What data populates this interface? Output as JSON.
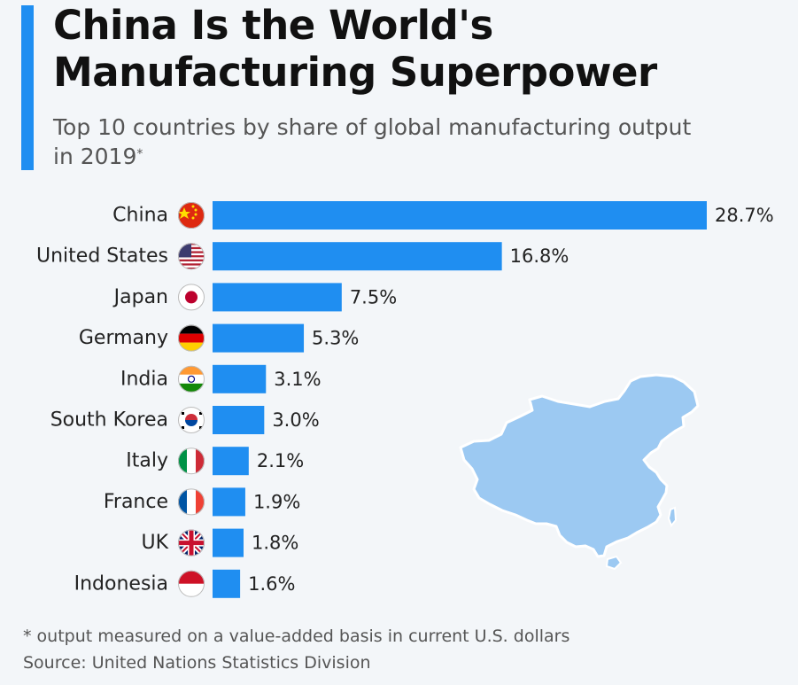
{
  "header": {
    "title_line1": "China Is the World's",
    "title_line2": "Manufacturing Superpower",
    "subtitle": "Top 10 countries by share of global manufacturing output in 2019",
    "subtitle_mark": "*"
  },
  "footer": {
    "footnote": "* output measured on a value-added basis in current U.S. dollars",
    "source": "Source: United Nations Statistics Division"
  },
  "colors": {
    "accent": "#1f8ef1",
    "bar": "#1f8ef1",
    "map_fill": "#9cc9f2",
    "map_stroke": "#ffffff"
  },
  "chart_data": {
    "type": "bar",
    "orientation": "horizontal",
    "categories": [
      "China",
      "United States",
      "Japan",
      "Germany",
      "India",
      "South Korea",
      "Italy",
      "France",
      "UK",
      "Indonesia"
    ],
    "values": [
      28.7,
      16.8,
      7.5,
      5.3,
      3.1,
      3.0,
      2.1,
      1.9,
      1.8,
      1.6
    ],
    "value_labels": [
      "28.7%",
      "16.8%",
      "7.5%",
      "5.3%",
      "3.1%",
      "3.0%",
      "2.1%",
      "1.9%",
      "1.8%",
      "1.6%"
    ],
    "flags": [
      "china-flag-icon",
      "usa-flag-icon",
      "japan-flag-icon",
      "germany-flag-icon",
      "india-flag-icon",
      "south-korea-flag-icon",
      "italy-flag-icon",
      "france-flag-icon",
      "uk-flag-icon",
      "indonesia-flag-icon"
    ],
    "unit": "%",
    "xlim": [
      0,
      28.7
    ],
    "grid": false,
    "legend": "none",
    "decoration": "china-map-illustration"
  }
}
